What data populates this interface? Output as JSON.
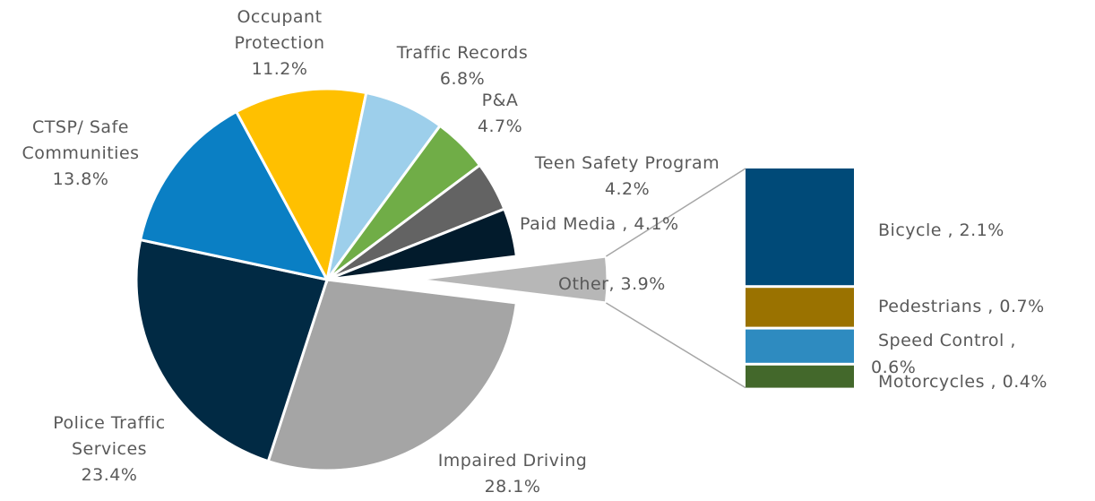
{
  "chart_data": [
    {
      "type": "pie",
      "categories": [
        "Impaired Driving",
        "Police Traffic Services",
        "CTSP/ Safe Communities",
        "Occupant Protection",
        "Traffic Records",
        "P&A",
        "Teen Safety Program",
        "Paid Media ,",
        "Other,"
      ],
      "values": [
        28.1,
        23.4,
        13.8,
        11.2,
        6.8,
        4.7,
        4.2,
        4.1,
        3.9
      ],
      "value_labels": [
        "28.1%",
        "23.4%",
        "13.8%",
        "11.2%",
        "6.8%",
        "4.7%",
        "4.2%",
        "4.1%",
        "3.9%"
      ],
      "colors": [
        "#a5a5a5",
        "#012a44",
        "#0a7fc4",
        "#ffc000",
        "#9dcfeb",
        "#70ad47",
        "#636363",
        "#021b2c",
        "#b7b7b7"
      ]
    },
    {
      "type": "bar",
      "categories": [
        "Bicycle ,",
        "Pedestrians ,",
        "Speed Control ,",
        "Motorcycles ,"
      ],
      "values": [
        2.1,
        0.7,
        0.6,
        0.4
      ],
      "value_labels": [
        "2.1%",
        "0.7%",
        "0.6%",
        "0.4%"
      ],
      "colors": [
        "#004a78",
        "#9a7200",
        "#2e8bc0",
        "#43682b"
      ]
    }
  ]
}
